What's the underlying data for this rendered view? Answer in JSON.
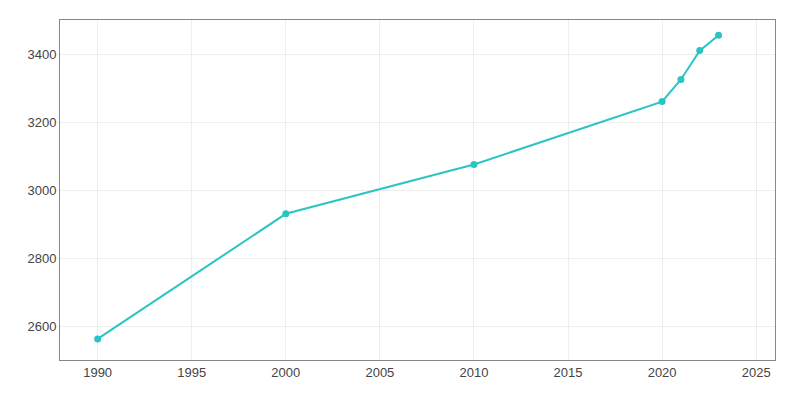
{
  "chart_data": {
    "type": "line",
    "x": [
      1990,
      2000,
      2010,
      2020,
      2021,
      2022,
      2023
    ],
    "values": [
      2562,
      2930,
      3075,
      3260,
      3325,
      3410,
      3455
    ],
    "color": "#2bc4c4",
    "marker": "circle",
    "line_style": "solid",
    "xlim": [
      1988,
      2026
    ],
    "ylim": [
      2500,
      3500
    ],
    "xticks": [
      1990,
      1995,
      2000,
      2005,
      2010,
      2015,
      2020,
      2025
    ],
    "yticks": [
      2600,
      2800,
      3000,
      3200,
      3400
    ],
    "grid": true
  }
}
